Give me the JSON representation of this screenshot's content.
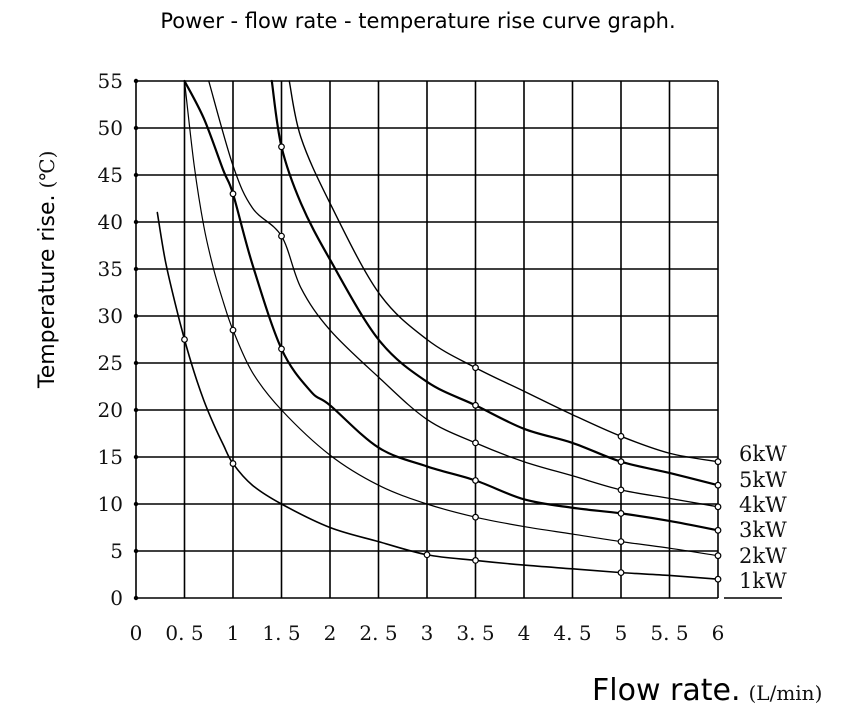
{
  "chart_data": {
    "type": "line",
    "title": "Power - flow rate - temperature rise curve graph.",
    "xlabel": "Flow rate.",
    "xlabel_unit": "(L/min)",
    "ylabel": "Temperature rise.",
    "ylabel_unit": "(℃)",
    "xlim": [
      0,
      6
    ],
    "ylim": [
      0,
      55
    ],
    "grid": true,
    "x_ticks": [
      0,
      0.5,
      1,
      1.5,
      2,
      2.5,
      3,
      3.5,
      4,
      4.5,
      5,
      5.5,
      6
    ],
    "x_tick_labels": [
      "0",
      "0. 5",
      "1",
      "1. 5",
      "2",
      "2. 5",
      "3",
      "3. 5",
      "4",
      "4. 5",
      "5",
      "5. 5",
      "6"
    ],
    "y_ticks": [
      0,
      5,
      10,
      15,
      20,
      25,
      30,
      35,
      40,
      45,
      50,
      55
    ],
    "y_tick_labels": [
      "0",
      "5",
      "10",
      "15",
      "20",
      "25",
      "30",
      "35",
      "40",
      "45",
      "50",
      "55"
    ],
    "legend_position": "right",
    "series": [
      {
        "name": "1kW",
        "x": [
          0.22,
          0.3,
          0.4,
          0.5,
          0.6,
          0.7,
          0.8,
          0.9,
          1.0,
          1.2,
          1.5,
          2.0,
          2.5,
          3.0,
          3.5,
          4.0,
          4.5,
          5.0,
          5.5,
          6.0
        ],
        "y": [
          41,
          36,
          31.5,
          27.5,
          24,
          21,
          18.5,
          16.3,
          14.3,
          12,
          10,
          7.5,
          6,
          4.6,
          4.0,
          3.5,
          3.1,
          2.7,
          2.4,
          2.0
        ],
        "markers_x": [
          0.5,
          1.0,
          3.0,
          3.5,
          5.0,
          6.0
        ],
        "markers_y": [
          27.5,
          14.3,
          4.6,
          4.0,
          2.7,
          2.0
        ],
        "width": 1.6
      },
      {
        "name": "2kW",
        "x": [
          0.5,
          0.6,
          0.7,
          0.8,
          0.9,
          1.0,
          1.2,
          1.5,
          2.0,
          2.5,
          3.0,
          3.5,
          4.0,
          4.5,
          5.0,
          5.5,
          6.0
        ],
        "y": [
          55,
          46,
          39.5,
          35,
          31.5,
          28.5,
          24,
          20,
          15.2,
          12,
          10,
          8.6,
          7.6,
          6.8,
          6.0,
          5.3,
          4.5
        ],
        "markers_x": [
          1.0,
          3.5,
          5.0,
          6.0
        ],
        "markers_y": [
          28.5,
          8.6,
          6.0,
          4.5
        ],
        "width": 1.2
      },
      {
        "name": "3kW",
        "x": [
          0.5,
          0.7,
          0.9,
          1.0,
          1.2,
          1.5,
          1.8,
          2.0,
          2.5,
          3.0,
          3.5,
          4.0,
          4.5,
          5.0,
          5.5,
          6.0
        ],
        "y": [
          55,
          51,
          45.5,
          43,
          35.5,
          26.5,
          22,
          20.5,
          16,
          14,
          12.5,
          10.5,
          9.6,
          9.0,
          8.2,
          7.2
        ],
        "markers_x": [
          1.0,
          1.5,
          3.5,
          5.0,
          6.0
        ],
        "markers_y": [
          43,
          26.5,
          12.5,
          9.0,
          7.2
        ],
        "width": 2.2
      },
      {
        "name": "4kW",
        "x": [
          0.75,
          1.0,
          1.2,
          1.5,
          1.7,
          2.0,
          2.5,
          3.0,
          3.5,
          4.0,
          4.5,
          5.0,
          5.5,
          6.0
        ],
        "y": [
          55,
          46,
          41.5,
          38.5,
          33,
          28.5,
          23.5,
          19,
          16.5,
          14.5,
          13,
          11.5,
          10.6,
          9.7
        ],
        "markers_x": [
          1.5,
          3.5,
          5.0,
          6.0
        ],
        "markers_y": [
          38.5,
          16.5,
          11.5,
          9.7
        ],
        "width": 1.3
      },
      {
        "name": "5kW",
        "x": [
          1.4,
          1.5,
          1.7,
          2.0,
          2.5,
          3.0,
          3.5,
          4.0,
          4.5,
          5.0,
          5.5,
          6.0
        ],
        "y": [
          55,
          48,
          42,
          36,
          27.5,
          23,
          20.5,
          18,
          16.5,
          14.5,
          13.3,
          12.0
        ],
        "markers_x": [
          1.5,
          3.5,
          5.0,
          6.0
        ],
        "markers_y": [
          48,
          20.5,
          14.5,
          12.0
        ],
        "width": 2.2
      },
      {
        "name": "6kW",
        "x": [
          1.58,
          1.7,
          2.0,
          2.5,
          3.0,
          3.5,
          4.0,
          4.5,
          5.0,
          5.5,
          6.0
        ],
        "y": [
          55,
          49,
          42,
          32.5,
          27.5,
          24.5,
          22,
          19.5,
          17.2,
          15.4,
          14.5
        ],
        "markers_x": [
          3.5,
          5.0,
          6.0
        ],
        "markers_y": [
          24.5,
          17.2,
          14.5
        ],
        "width": 1.4
      }
    ]
  }
}
